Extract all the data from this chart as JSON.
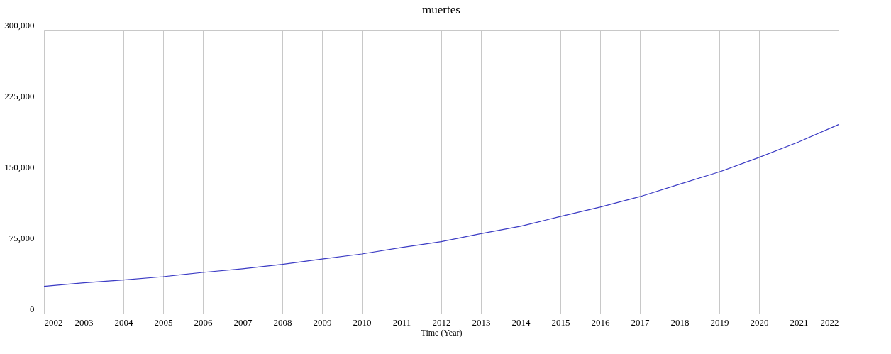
{
  "chart_data": {
    "type": "line",
    "title": "muertes",
    "xlabel": "Time (Year)",
    "x": [
      2002,
      2003,
      2004,
      2005,
      2006,
      2007,
      2008,
      2009,
      2010,
      2011,
      2012,
      2013,
      2014,
      2015,
      2016,
      2017,
      2018,
      2019,
      2020,
      2021,
      2022
    ],
    "series": [
      {
        "color": "#3b3bc4",
        "values": [
          28800,
          32500,
          35600,
          39000,
          43500,
          47400,
          52000,
          57600,
          63000,
          69900,
          76000,
          84500,
          92400,
          102600,
          112600,
          123600,
          136800,
          149800,
          165100,
          181500,
          199800
        ]
      }
    ],
    "xlim": [
      2002,
      2022
    ],
    "xticks": [
      2002,
      2003,
      2004,
      2005,
      2006,
      2007,
      2008,
      2009,
      2010,
      2011,
      2012,
      2013,
      2014,
      2015,
      2016,
      2017,
      2018,
      2019,
      2020,
      2021,
      2022
    ],
    "ylim": [
      0,
      300000
    ],
    "yticks": [
      0,
      {
        "value": 75000,
        "label": "75,000"
      },
      {
        "value": 150000,
        "label": "150,000"
      },
      {
        "value": 225000,
        "label": "225,000"
      },
      {
        "value": 300000,
        "label": "300,000"
      }
    ],
    "grid": true,
    "marker": "none",
    "line_style": "solid"
  }
}
